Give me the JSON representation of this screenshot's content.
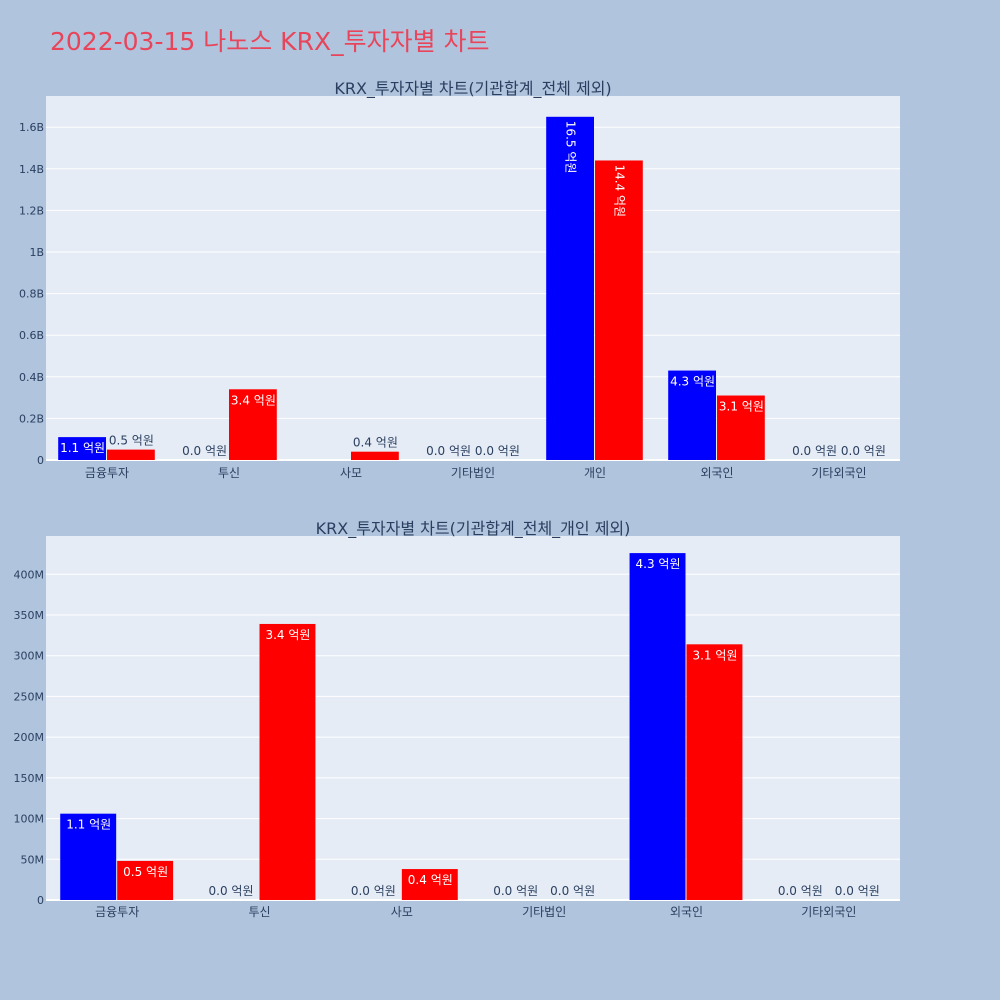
{
  "page": {
    "title": "2022-03-15 나노스 KRX_투자자별 차트"
  },
  "colors": {
    "background": "#b0c4de",
    "plot_bg": "#e5ecf6",
    "buy": "#0000ff",
    "sell": "#ff0000",
    "title": "#e8455a"
  },
  "chart_data": [
    {
      "type": "bar",
      "title": "KRX_투자자별 차트(기관합계_전체 제외)",
      "categories": [
        "금융투자",
        "투신",
        "사모",
        "기타법인",
        "개인",
        "외국인",
        "기타외국인"
      ],
      "ylim": [
        0,
        1750000000
      ],
      "yticks": [
        0,
        200000000,
        400000000,
        600000000,
        800000000,
        1000000000,
        1200000000,
        1400000000,
        1600000000
      ],
      "ytick_labels": [
        "0",
        "0.2B",
        "0.4B",
        "0.6B",
        "0.8B",
        "1B",
        "1.2B",
        "1.4B",
        "1.6B"
      ],
      "grid": true,
      "series": [
        {
          "color": "#0000ff",
          "values": [
            110000000,
            0,
            0,
            0,
            1650000000,
            430000000,
            0
          ],
          "labels": [
            "1.1 억원",
            "0.0 억원",
            "",
            "0.0 억원",
            "16.5 억원",
            "4.3 억원",
            "0.0 억원"
          ]
        },
        {
          "color": "#ff0000",
          "values": [
            50000000,
            340000000,
            40000000,
            0,
            1440000000,
            310000000,
            0
          ],
          "labels": [
            "0.5 억원",
            "3.4 억원",
            "0.4 억원",
            "0.0 억원",
            "14.4 억원",
            "3.1 억원",
            "0.0 억원"
          ]
        }
      ]
    },
    {
      "type": "bar",
      "title": "KRX_투자자별 차트(기관합계_전체_개인 제외)",
      "categories": [
        "금융투자",
        "투신",
        "사모",
        "기타법인",
        "외국인",
        "기타외국인"
      ],
      "ylim": [
        0,
        447000000
      ],
      "yticks": [
        0,
        50000000,
        100000000,
        150000000,
        200000000,
        250000000,
        300000000,
        350000000,
        400000000
      ],
      "ytick_labels": [
        "0",
        "50M",
        "100M",
        "150M",
        "200M",
        "250M",
        "300M",
        "350M",
        "400M"
      ],
      "grid": true,
      "series": [
        {
          "color": "#0000ff",
          "values": [
            106000000,
            0,
            0,
            0,
            426000000,
            0
          ],
          "labels": [
            "1.1 억원",
            "0.0 억원",
            "0.0 억원",
            "0.0 억원",
            "4.3 억원",
            "0.0 억원"
          ]
        },
        {
          "color": "#ff0000",
          "values": [
            48000000,
            339000000,
            38000000,
            0,
            314000000,
            0
          ],
          "labels": [
            "0.5 억원",
            "3.4 억원",
            "0.4 억원",
            "0.0 억원",
            "3.1 억원",
            "0.0 억원"
          ]
        }
      ]
    }
  ]
}
